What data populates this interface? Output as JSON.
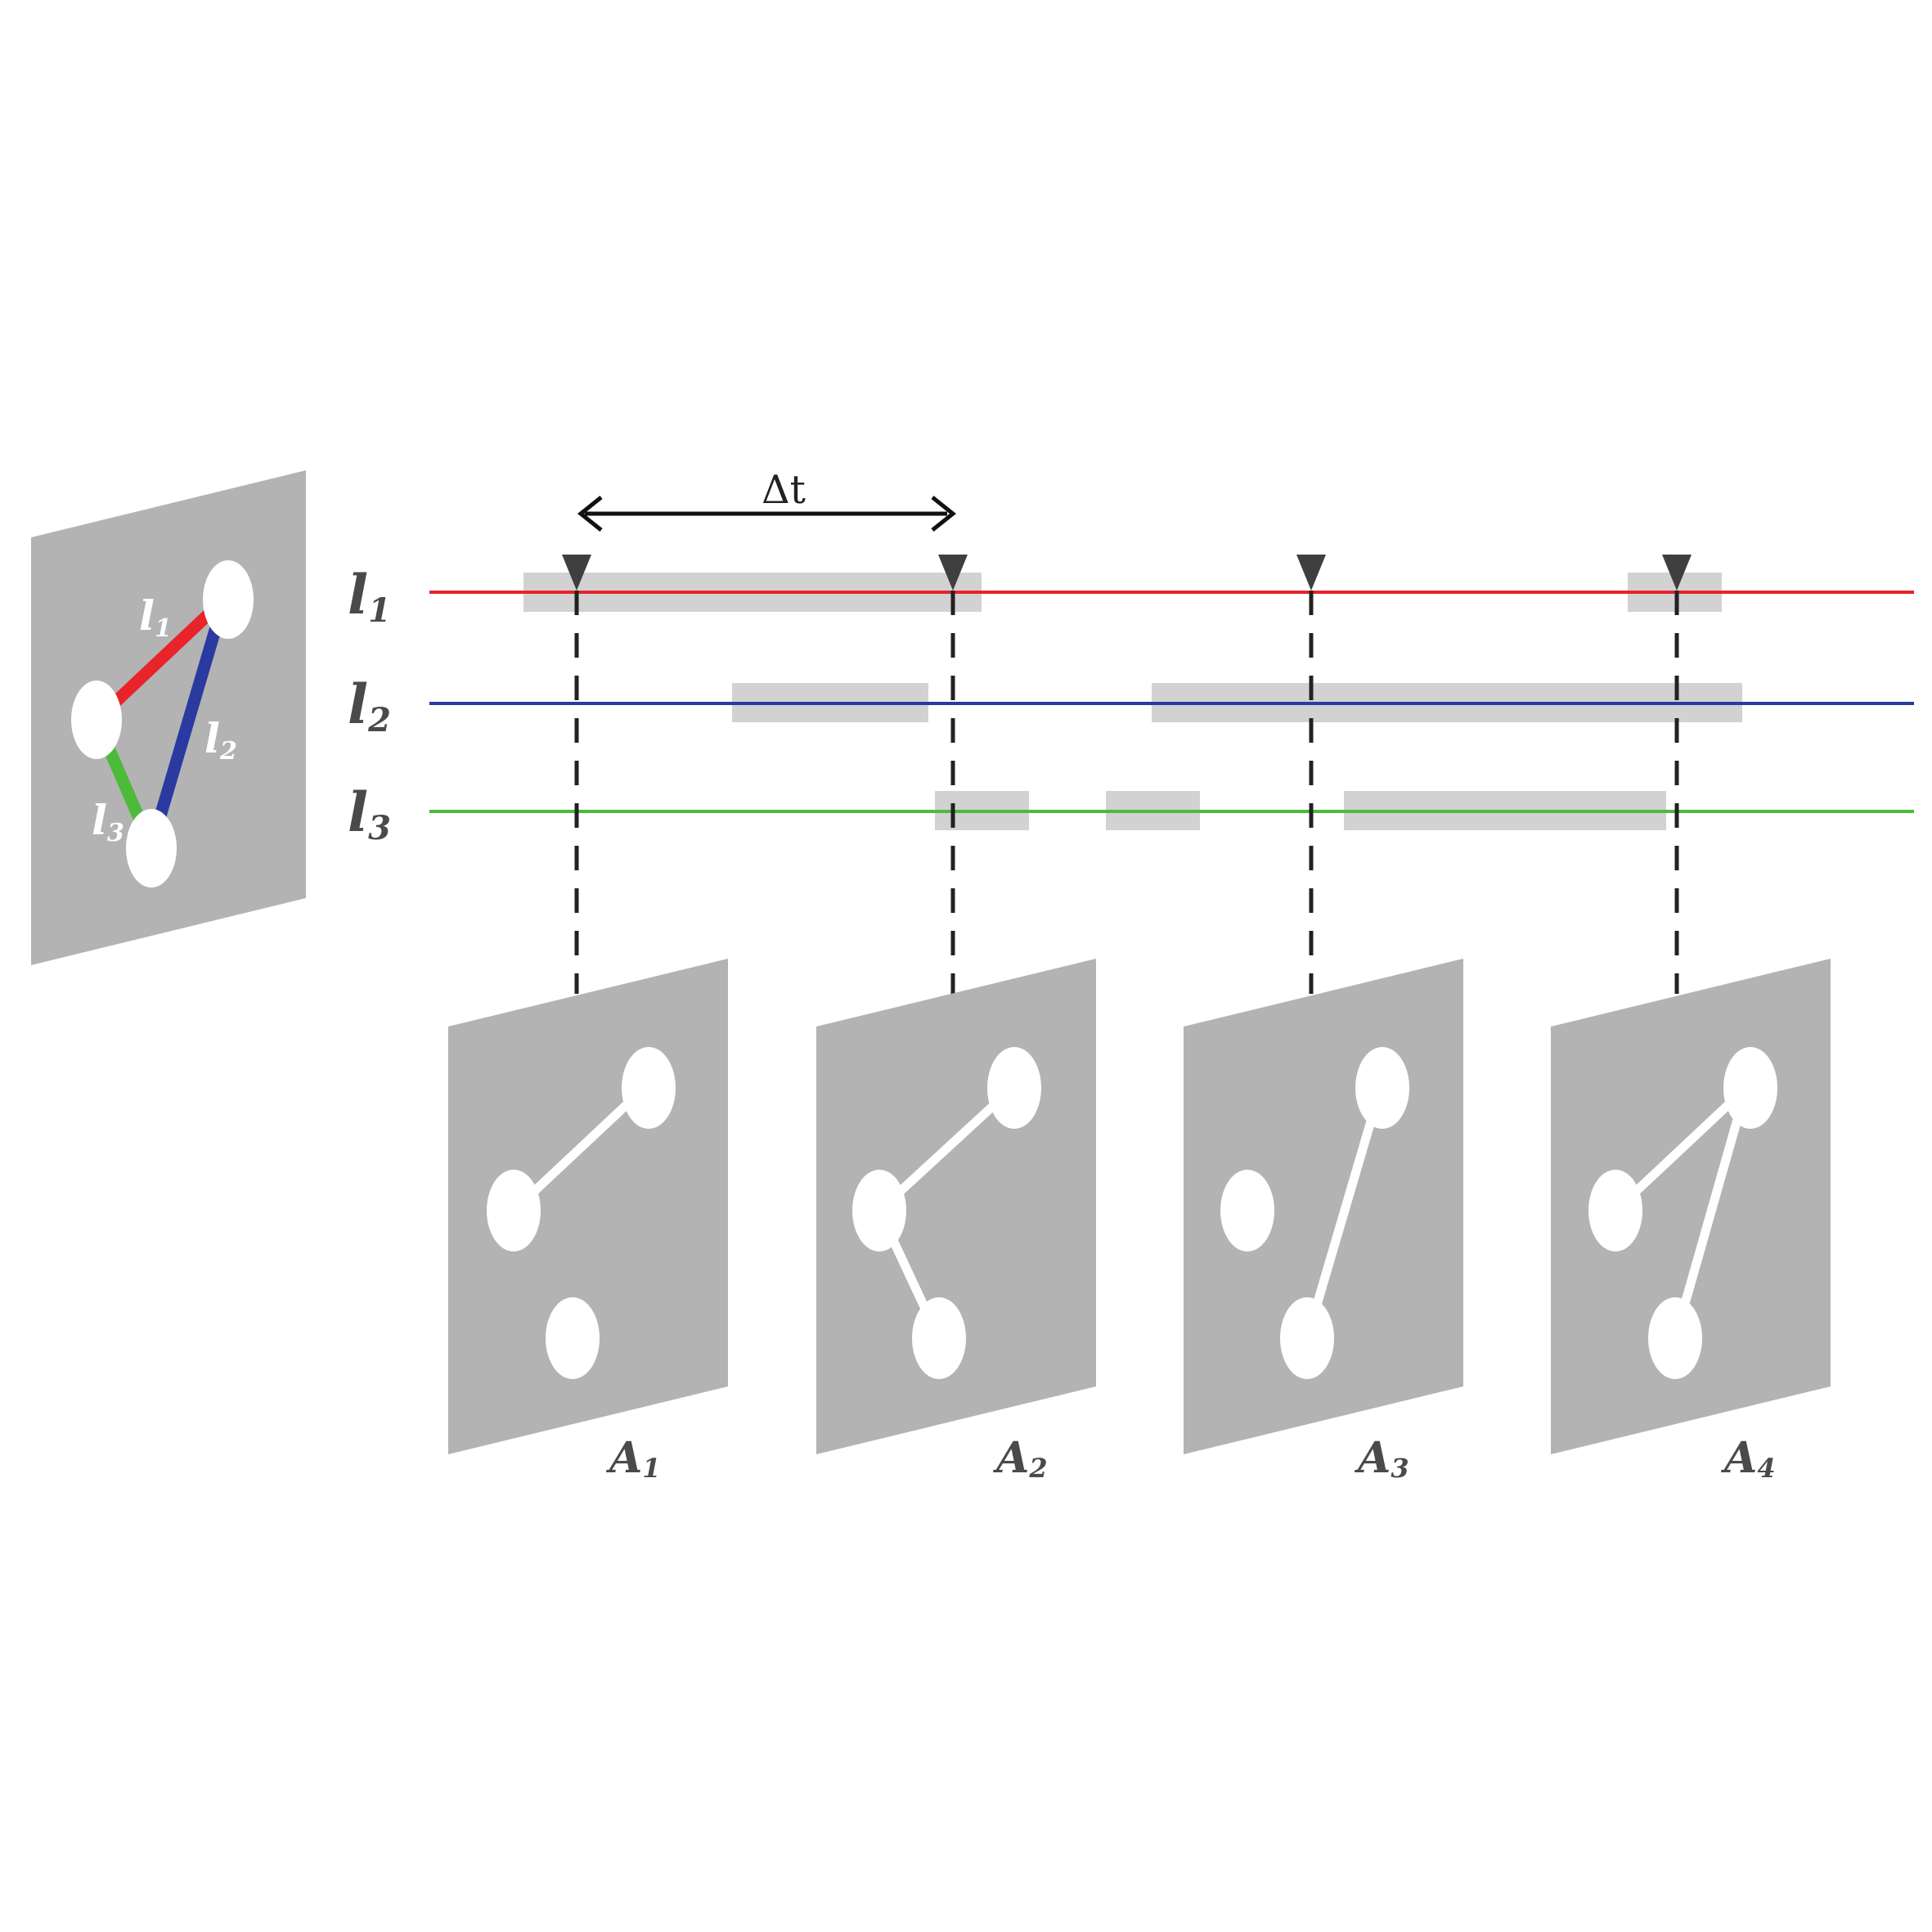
{
  "colors": {
    "link1": "#e8232a",
    "link2": "#2b3aa0",
    "link3": "#4cbb3a",
    "panel": "#b3b3b3",
    "activity": "#d2d2d2",
    "marker": "#3f3f3f",
    "node": "#ffffff"
  },
  "delta_label": "Δt",
  "aggregate": {
    "labels": [
      {
        "base": "l",
        "sub": "1"
      },
      {
        "base": "l",
        "sub": "2"
      },
      {
        "base": "l",
        "sub": "3"
      }
    ]
  },
  "links": [
    {
      "base": "l",
      "sub": "1",
      "color": "#e8232a"
    },
    {
      "base": "l",
      "sub": "2",
      "color": "#2b3aa0"
    },
    {
      "base": "l",
      "sub": "3",
      "color": "#4cbb3a"
    }
  ],
  "snapshots": [
    {
      "base": "A",
      "sub": "1"
    },
    {
      "base": "A",
      "sub": "2"
    },
    {
      "base": "A",
      "sub": "3"
    },
    {
      "base": "A",
      "sub": "4"
    }
  ]
}
